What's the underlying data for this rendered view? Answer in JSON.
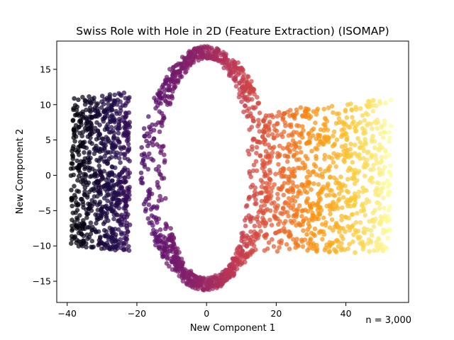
{
  "chart_data": {
    "type": "scatter",
    "title": "Swiss Role with Hole in 2D (Feature Extraction) (ISOMAP)",
    "xlabel": "New Component 1",
    "ylabel": "New Component 2",
    "xlim": [
      -43,
      58
    ],
    "ylim": [
      -18,
      19
    ],
    "xticks": [
      -40,
      -20,
      0,
      20,
      40
    ],
    "yticks": [
      -15,
      -10,
      -5,
      0,
      5,
      10,
      15
    ],
    "xtick_labels": [
      "−40",
      "−20",
      "0",
      "20",
      "40"
    ],
    "ytick_labels": [
      "−15",
      "−10",
      "−5",
      "0",
      "5",
      "10",
      "15"
    ],
    "grid": false,
    "colormap": "inferno (by position along component 1)",
    "annotation": "n = 3,000",
    "point_count": 3000,
    "regions": [
      {
        "name": "left band",
        "x": [
          -39,
          -22
        ],
        "y": [
          -10,
          11
        ]
      },
      {
        "name": "central ellipse ring",
        "center": [
          0,
          1
        ],
        "radius_x": [
          11,
          19
        ],
        "radius_y": [
          15,
          17.5
        ]
      },
      {
        "name": "right band",
        "x": [
          16,
          53
        ],
        "y": [
          -11,
          11
        ]
      }
    ]
  }
}
